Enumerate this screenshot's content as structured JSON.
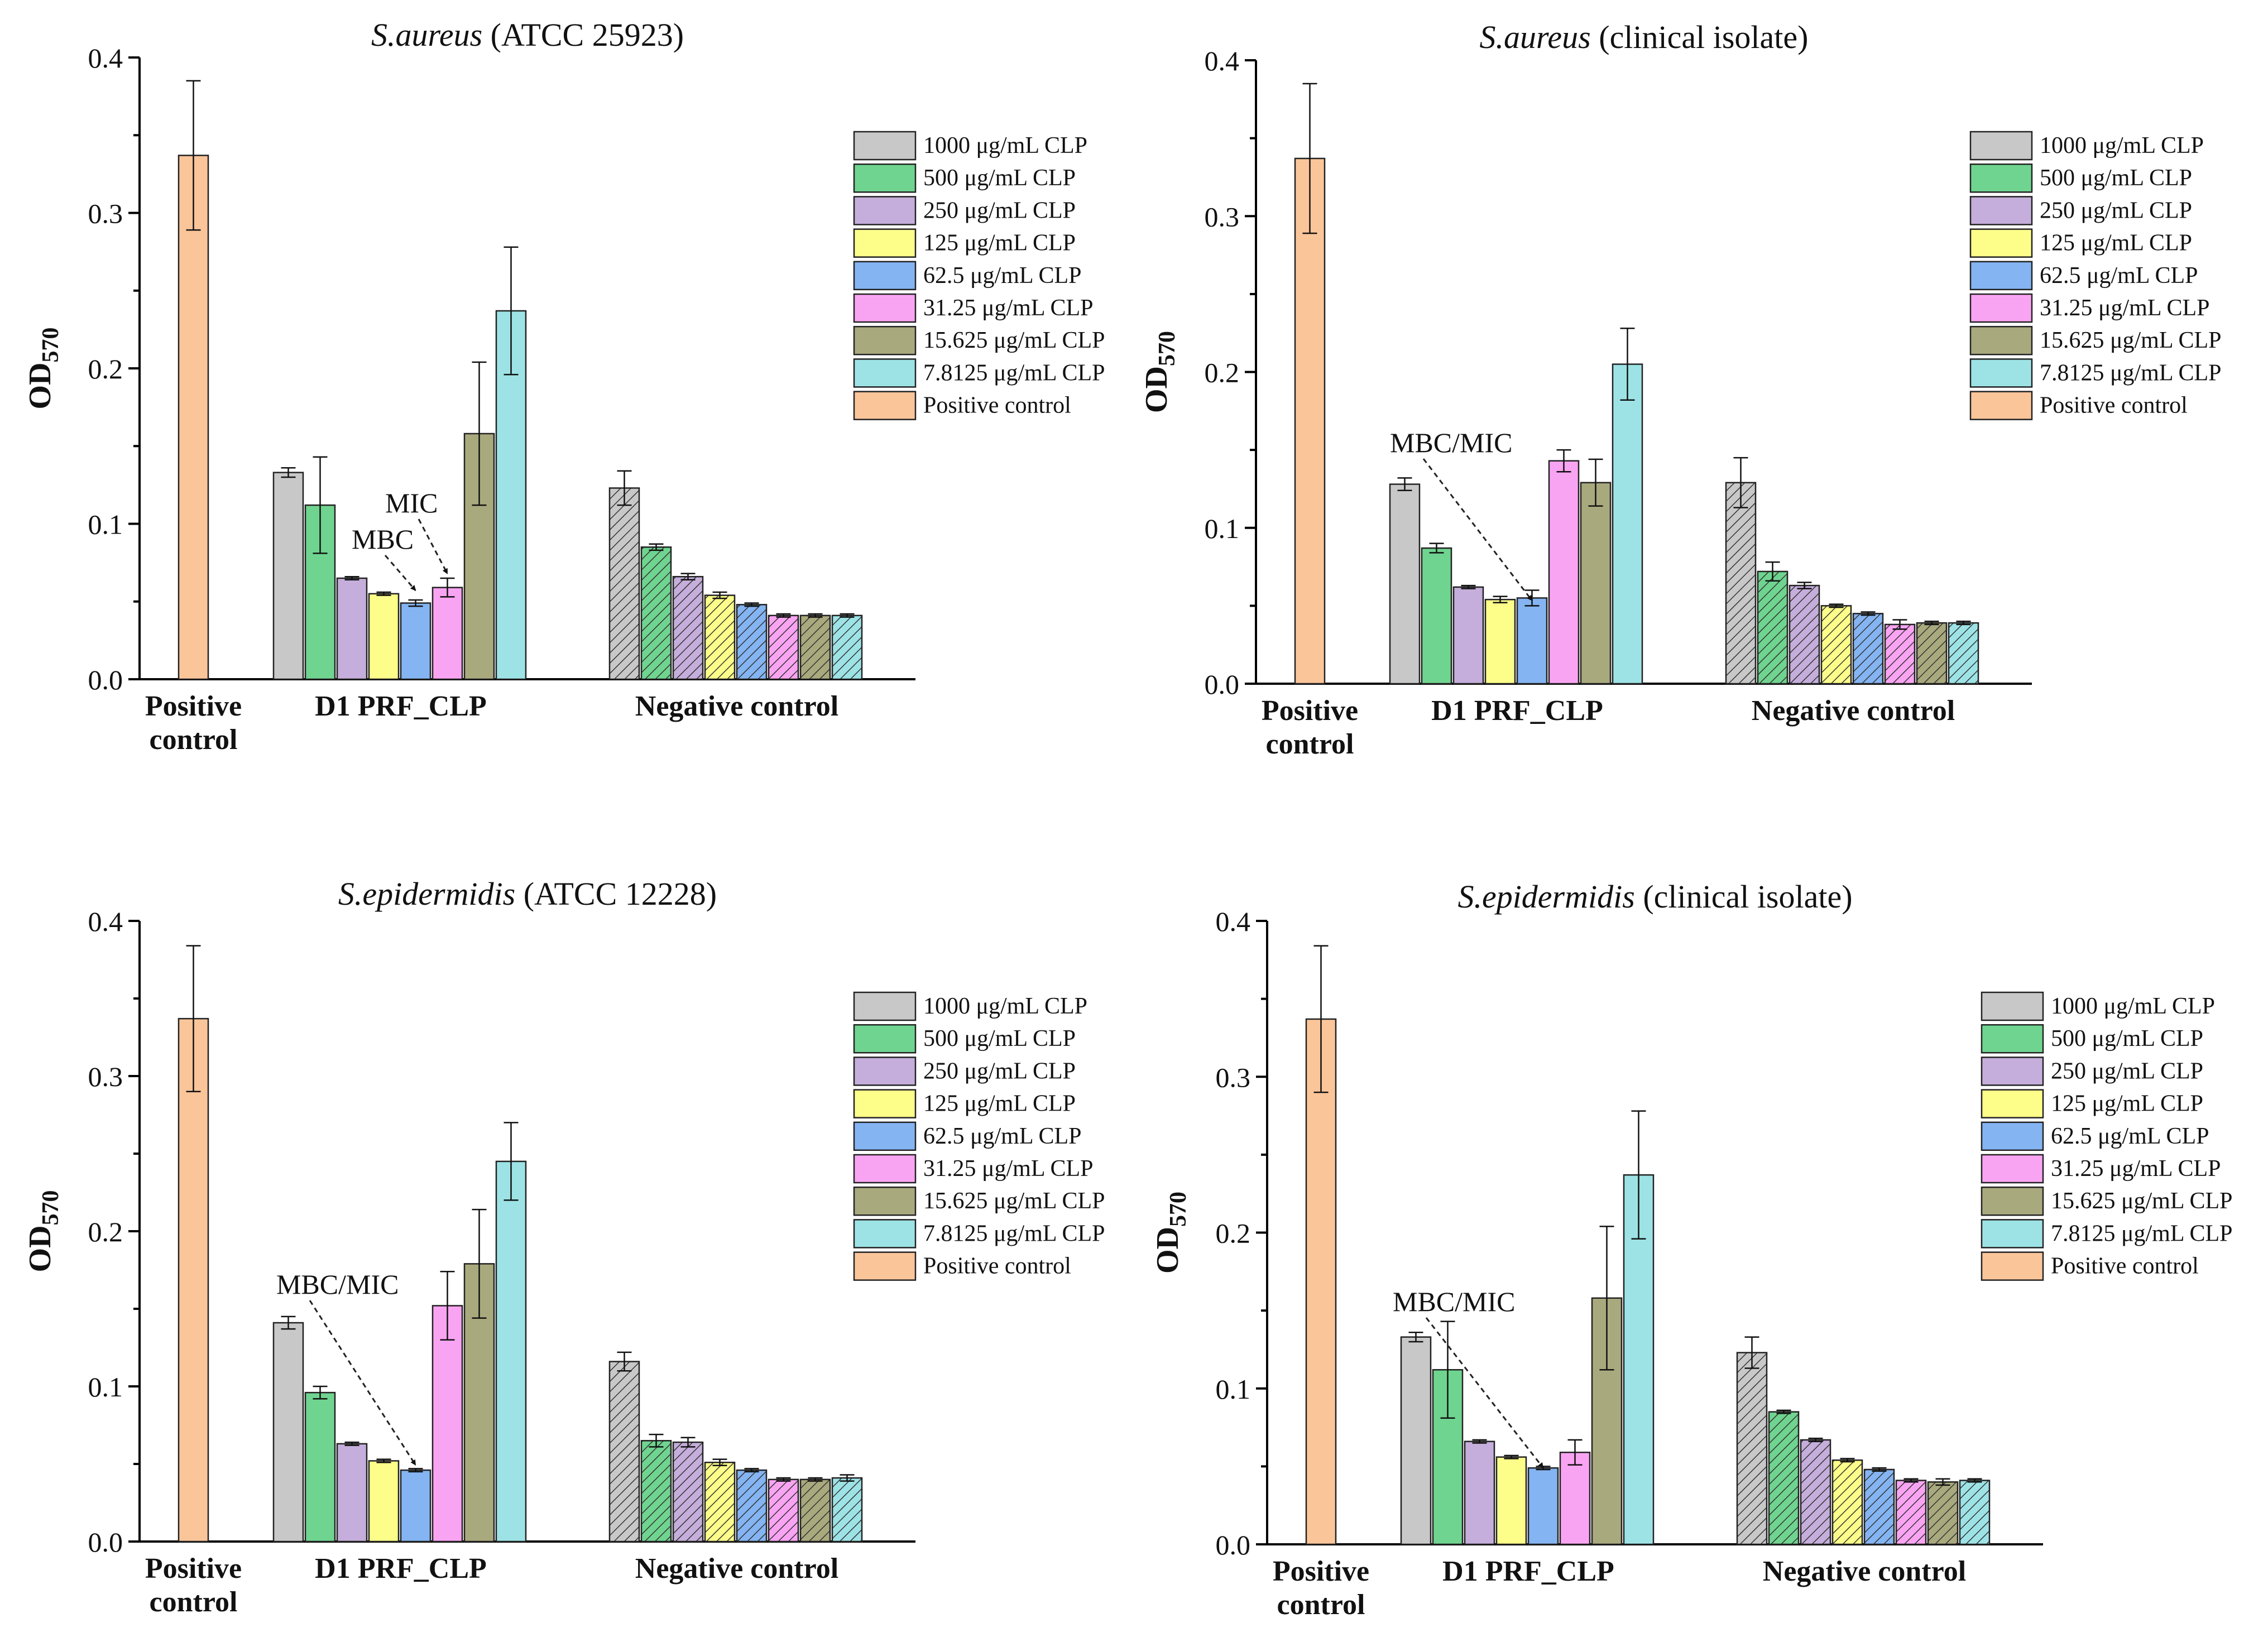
{
  "colors": {
    "hatch": "#333333",
    "positive_control": "#FBC59A"
  },
  "legend_labels": [
    "1000 μg/mL CLP",
    "500 μg/mL CLP",
    "250 μg/mL CLP",
    "125 μg/mL CLP",
    "62.5 μg/mL CLP",
    "31.25 μg/mL CLP",
    "15.625 μg/mL CLP",
    "7.8125 μg/mL CLP",
    "Positive control"
  ],
  "legend_colors": [
    "#C8C8C8",
    "#6FD48F",
    "#C5AEDB",
    "#FDFD8A",
    "#84B4F2",
    "#F9A4F2",
    "#A9A97E",
    "#9DE3E6",
    "#FBC59A"
  ],
  "chart_data": [
    {
      "type": "bar",
      "title_italic": "S.aureus",
      "title_rest": " (ATCC 25923)",
      "ylabel_main": "OD",
      "ylabel_sub": "570",
      "ylim": [
        0,
        0.4
      ],
      "yticks": [
        "0.0",
        "0.1",
        "0.2",
        "0.3",
        "0.4"
      ],
      "groups": [
        "Positive control",
        "D1 PRF_CLP",
        "Negative control"
      ],
      "positive_control": {
        "value": 0.337,
        "err": 0.048
      },
      "prf_clp": {
        "values": [
          0.133,
          0.112,
          0.065,
          0.055,
          0.049,
          0.059,
          0.158,
          0.237
        ],
        "errors": [
          0.003,
          0.031,
          0.001,
          0.001,
          0.002,
          0.006,
          0.046,
          0.041
        ]
      },
      "negative_control": {
        "values": [
          0.123,
          0.085,
          0.066,
          0.054,
          0.048,
          0.041,
          0.041,
          0.041
        ],
        "errors": [
          0.011,
          0.002,
          0.002,
          0.002,
          0.001,
          0.001,
          0.001,
          0.001
        ]
      },
      "annotations": [
        {
          "text": "MIC",
          "target": 5
        },
        {
          "text": "MBC",
          "target": 4
        }
      ]
    },
    {
      "type": "bar",
      "title_italic": "S.aureus",
      "title_rest": " (clinical isolate)",
      "ylabel_main": "OD",
      "ylabel_sub": "570",
      "ylim": [
        0,
        0.4
      ],
      "yticks": [
        "0.0",
        "0.1",
        "0.2",
        "0.3",
        "0.4"
      ],
      "groups": [
        "Positive control",
        "D1 PRF_CLP",
        "Negative control"
      ],
      "positive_control": {
        "value": 0.337,
        "err": 0.048
      },
      "prf_clp": {
        "values": [
          0.128,
          0.087,
          0.062,
          0.054,
          0.055,
          0.143,
          0.129,
          0.205
        ],
        "errors": [
          0.004,
          0.003,
          0.001,
          0.002,
          0.005,
          0.007,
          0.015,
          0.023
        ]
      },
      "negative_control": {
        "values": [
          0.129,
          0.072,
          0.063,
          0.05,
          0.045,
          0.038,
          0.039,
          0.039
        ],
        "errors": [
          0.016,
          0.006,
          0.002,
          0.001,
          0.001,
          0.003,
          0.001,
          0.001
        ]
      },
      "annotations": [
        {
          "text": "MBC/MIC",
          "target": 4
        }
      ]
    },
    {
      "type": "bar",
      "title_italic": "S.epidermidis",
      "title_rest": " (ATCC 12228)",
      "ylabel_main": "OD",
      "ylabel_sub": "570",
      "ylim": [
        0,
        0.4
      ],
      "yticks": [
        "0.0",
        "0.1",
        "0.2",
        "0.3",
        "0.4"
      ],
      "groups": [
        "Positive control",
        "D1 PRF_CLP",
        "Negative control"
      ],
      "positive_control": {
        "value": 0.337,
        "err": 0.047
      },
      "prf_clp": {
        "values": [
          0.141,
          0.096,
          0.063,
          0.052,
          0.046,
          0.152,
          0.179,
          0.245
        ],
        "errors": [
          0.004,
          0.004,
          0.001,
          0.001,
          0.001,
          0.022,
          0.035,
          0.025
        ]
      },
      "negative_control": {
        "values": [
          0.116,
          0.065,
          0.064,
          0.051,
          0.046,
          0.04,
          0.04,
          0.041
        ],
        "errors": [
          0.006,
          0.004,
          0.003,
          0.002,
          0.001,
          0.001,
          0.001,
          0.002
        ]
      },
      "annotations": [
        {
          "text": "MBC/MIC",
          "target": 4
        }
      ]
    },
    {
      "type": "bar",
      "title_italic": "S.epidermidis",
      "title_rest": " (clinical isolate)",
      "ylabel_main": "OD",
      "ylabel_sub": "570",
      "ylim": [
        0,
        0.4
      ],
      "yticks": [
        "0.0",
        "0.1",
        "0.2",
        "0.3",
        "0.4"
      ],
      "groups": [
        "Positive control",
        "D1 PRF_CLP",
        "Negative control"
      ],
      "positive_control": {
        "value": 0.337,
        "err": 0.047
      },
      "prf_clp": {
        "values": [
          0.133,
          0.112,
          0.066,
          0.056,
          0.049,
          0.059,
          0.158,
          0.237
        ],
        "errors": [
          0.003,
          0.031,
          0.001,
          0.001,
          0.001,
          0.008,
          0.046,
          0.041
        ]
      },
      "negative_control": {
        "values": [
          0.123,
          0.085,
          0.067,
          0.054,
          0.048,
          0.041,
          0.04,
          0.041
        ],
        "errors": [
          0.01,
          0.001,
          0.001,
          0.001,
          0.001,
          0.001,
          0.002,
          0.001
        ]
      },
      "annotations": [
        {
          "text": "MBC/MIC",
          "target": 4
        }
      ]
    }
  ]
}
